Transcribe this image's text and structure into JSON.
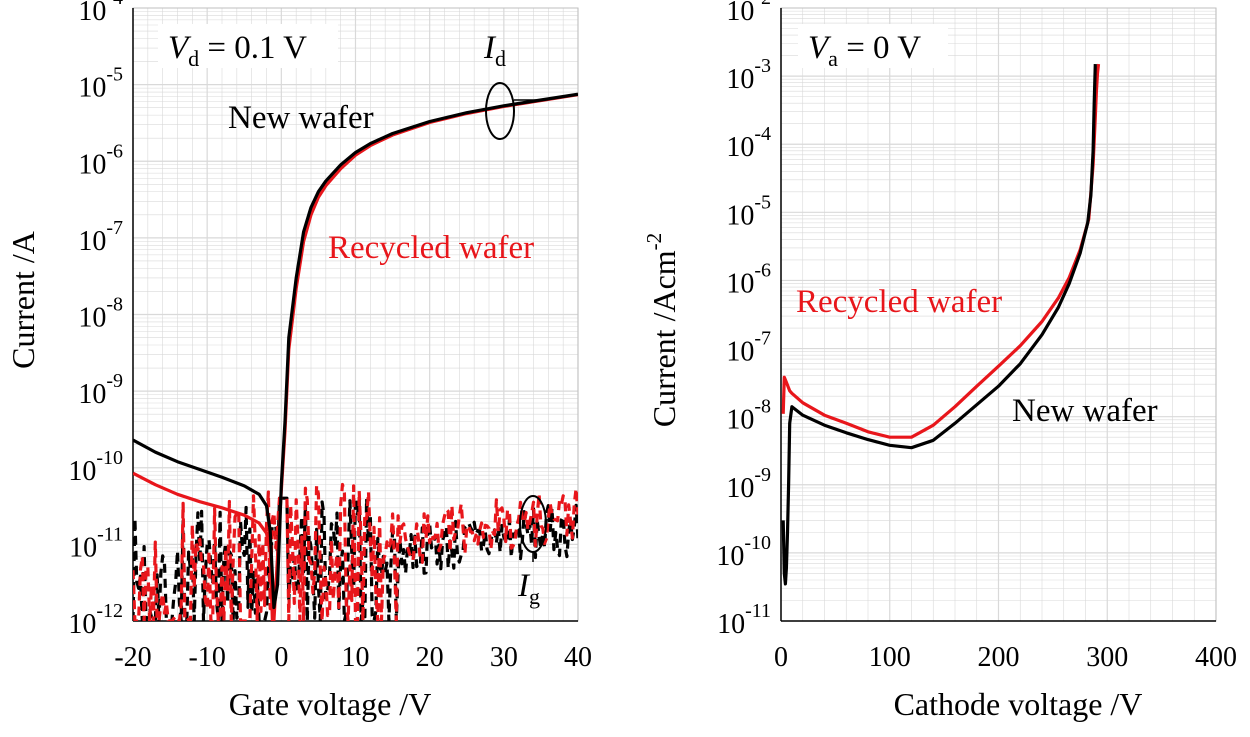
{
  "colors": {
    "new": "#000000",
    "recycled": "#e8161b",
    "grid": "#d9d9d9"
  },
  "chart_data": [
    {
      "type": "line",
      "yscale": "log",
      "xlim": [
        -20,
        40
      ],
      "ylim_exp": [
        -12,
        -4
      ],
      "x_ticks": [
        "-20",
        "-10",
        "0",
        "10",
        "20",
        "30",
        "40"
      ],
      "y_ticks": [
        {
          "base": "10",
          "exp": "-12"
        },
        {
          "base": "10",
          "exp": "-11"
        },
        {
          "base": "10",
          "exp": "-10"
        },
        {
          "base": "10",
          "exp": "-9"
        },
        {
          "base": "10",
          "exp": "-8"
        },
        {
          "base": "10",
          "exp": "-7"
        },
        {
          "base": "10",
          "exp": "-6"
        },
        {
          "base": "10",
          "exp": "-5"
        },
        {
          "base": "10",
          "exp": "-4"
        }
      ],
      "xlabel": "Gate voltage /V",
      "ylabel": "Current /A",
      "grid": true,
      "annotations": {
        "condition": {
          "sym": "V",
          "sub": "d",
          "rest": " = 0.1 V"
        },
        "id_label": {
          "sym": "I",
          "sub": "d"
        },
        "ig_label": {
          "sym": "I",
          "sub": "g"
        },
        "new_label": "New wafer",
        "recycled_label": "Recycled wafer"
      },
      "series": [
        {
          "name": "New wafer",
          "color": "#000000",
          "x": [
            -20,
            -17,
            -14,
            -11,
            -8,
            -5,
            -3,
            -2,
            -1.5,
            -1,
            -0.5,
            0,
            0.5,
            1,
            2,
            3,
            4,
            5,
            6,
            8,
            10,
            12,
            15,
            20,
            25,
            30,
            35,
            40
          ],
          "y": [
            2.3e-10,
            1.6e-10,
            1.2e-10,
            9.5e-11,
            7.5e-11,
            5.8e-11,
            4.5e-11,
            3.2e-11,
            1.5e-11,
            1.5e-12,
            3e-12,
            6e-11,
            4e-10,
            5e-09,
            3e-08,
            1.2e-07,
            2.5e-07,
            4e-07,
            5.5e-07,
            9e-07,
            1.3e-06,
            1.7e-06,
            2.3e-06,
            3.3e-06,
            4.3e-06,
            5.3e-06,
            6.3e-06,
            7.5e-06
          ]
        },
        {
          "name": "Recycled wafer",
          "color": "#e8161b",
          "x": [
            -20,
            -17,
            -14,
            -11,
            -8,
            -5,
            -3,
            -2,
            -1.5,
            -1.2,
            -1,
            0,
            0.5,
            1,
            2,
            3,
            4,
            5,
            6,
            8,
            10,
            12,
            15,
            20,
            25,
            30,
            35,
            40
          ],
          "y": [
            8.5e-11,
            6e-11,
            4.5e-11,
            3.6e-11,
            3e-11,
            2.4e-11,
            1.9e-11,
            1.4e-11,
            8e-12,
            1e-12,
            1e-12,
            5e-11,
            3e-10,
            3.5e-09,
            2.2e-08,
            9e-08,
            2e-07,
            3.4e-07,
            4.8e-07,
            8e-07,
            1.2e-06,
            1.6e-06,
            2.2e-06,
            3.2e-06,
            4.2e-06,
            5.2e-06,
            6.2e-06,
            7.4e-06
          ]
        }
      ],
      "dashed_series": [
        {
          "name": "Ig new wafer",
          "color": "#000000",
          "from": -20,
          "to": 40,
          "start": 3e-12,
          "end": 1.6e-11,
          "seed": 7
        },
        {
          "name": "Ig recycled wafer",
          "color": "#e8161b",
          "from": -20,
          "to": 40,
          "start": 3.5e-12,
          "end": 2.6e-11,
          "seed": 13
        }
      ]
    },
    {
      "type": "line",
      "yscale": "log",
      "xlim": [
        0,
        400
      ],
      "ylim_exp": [
        -11,
        -2
      ],
      "x_ticks": [
        "0",
        "100",
        "200",
        "300",
        "400"
      ],
      "y_ticks": [
        {
          "base": "10",
          "exp": "-11"
        },
        {
          "base": "10",
          "exp": "-10"
        },
        {
          "base": "10",
          "exp": "-9"
        },
        {
          "base": "10",
          "exp": "-8"
        },
        {
          "base": "10",
          "exp": "-7"
        },
        {
          "base": "10",
          "exp": "-6"
        },
        {
          "base": "10",
          "exp": "-5"
        },
        {
          "base": "10",
          "exp": "-4"
        },
        {
          "base": "10",
          "exp": "-3"
        },
        {
          "base": "10",
          "exp": "-2"
        }
      ],
      "xlabel": "Cathode voltage /V",
      "ylabel": "Current /Acm",
      "ylabel_sup": "-2",
      "grid": true,
      "annotations": {
        "condition": {
          "sym": "V",
          "sub": "a",
          "rest": " = 0 V"
        },
        "new_label": "New wafer",
        "recycled_label": "Recycled wafer"
      },
      "series": [
        {
          "name": "New wafer",
          "color": "#000000",
          "x": [
            2,
            3,
            4,
            5,
            6,
            7,
            8,
            10,
            20,
            40,
            60,
            80,
            100,
            120,
            140,
            160,
            180,
            200,
            220,
            240,
            255,
            265,
            275,
            282,
            285,
            287,
            288,
            289
          ],
          "y": [
            3e-10,
            5e-11,
            3.5e-11,
            6e-11,
            2e-10,
            1e-09,
            8e-09,
            1.4e-08,
            1.05e-08,
            7.5e-09,
            5.8e-09,
            4.6e-09,
            3.8e-09,
            3.5e-09,
            4.5e-09,
            8e-09,
            1.5e-08,
            2.8e-08,
            6e-08,
            1.6e-07,
            4e-07,
            9e-07,
            2.5e-06,
            7e-06,
            1.8e-05,
            8e-05,
            0.0004,
            0.0015
          ]
        },
        {
          "name": "Recycled wafer",
          "color": "#e8161b",
          "x": [
            2,
            3,
            5,
            8,
            10,
            20,
            40,
            60,
            80,
            100,
            120,
            140,
            160,
            180,
            200,
            220,
            240,
            255,
            265,
            275,
            283,
            287,
            289,
            290,
            291,
            292
          ],
          "y": [
            1.1e-08,
            3.8e-08,
            3.2e-08,
            2.4e-08,
            2.2e-08,
            1.6e-08,
            1.05e-08,
            8e-09,
            6e-09,
            5e-09,
            5e-09,
            7.5e-09,
            1.4e-08,
            2.8e-08,
            5.5e-08,
            1.1e-07,
            2.5e-07,
            5.5e-07,
            1.1e-06,
            2.8e-06,
            8e-06,
            5e-05,
            0.00025,
            0.0006,
            0.0011,
            0.0015
          ]
        }
      ]
    }
  ]
}
